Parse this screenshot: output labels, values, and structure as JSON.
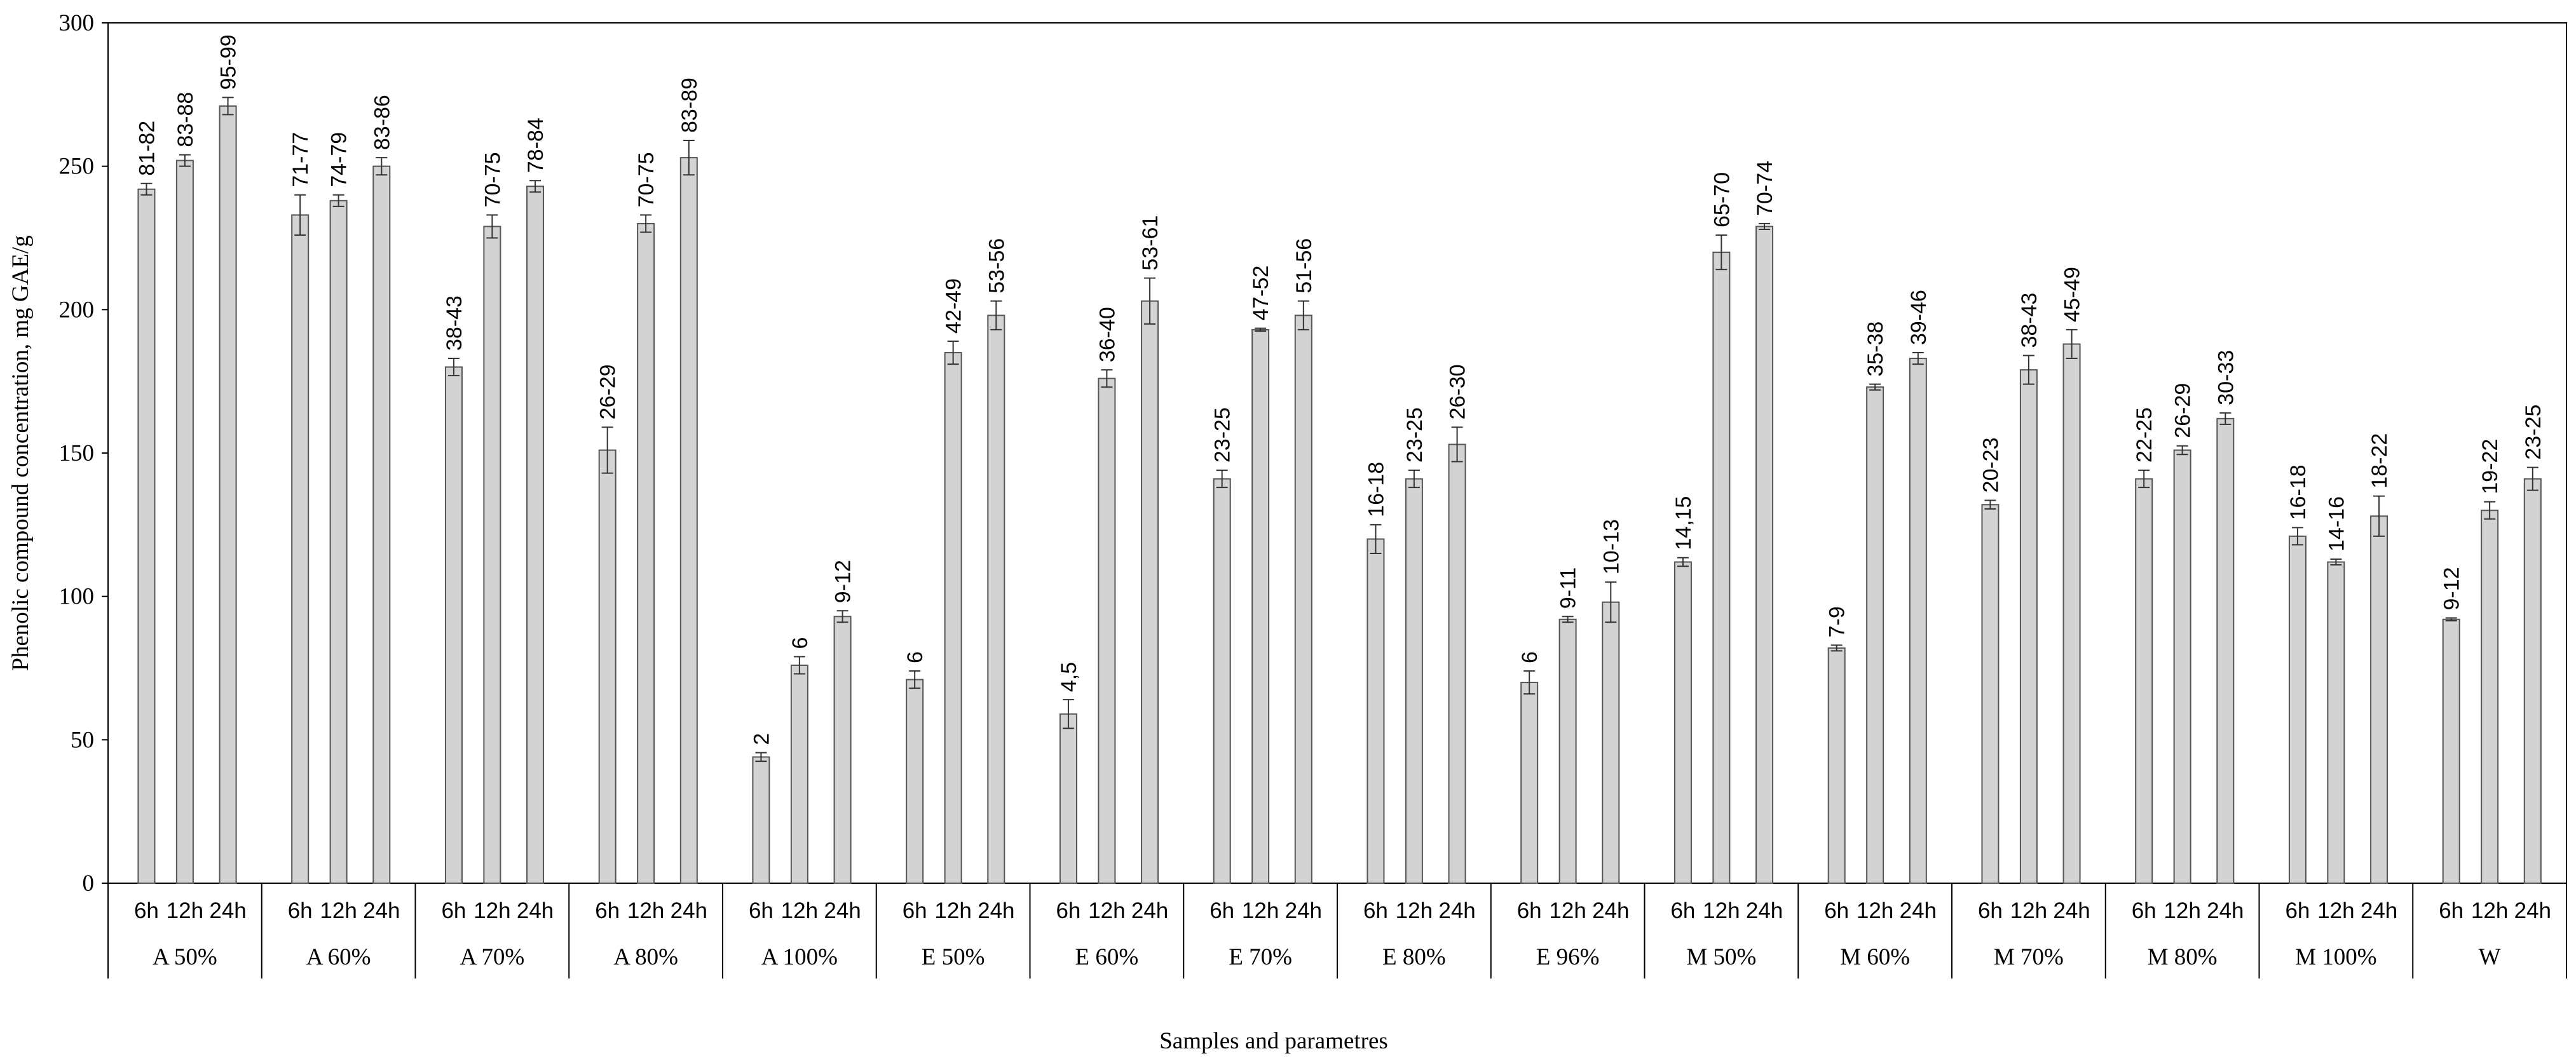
{
  "chart_data": {
    "type": "bar",
    "xlabel": "Samples and parametres",
    "ylabel": "Phenolic compound concentration, mg GAE/g",
    "ylim": [
      0,
      300
    ],
    "yticks": [
      "0",
      "50",
      "100",
      "150",
      "200",
      "250",
      "300"
    ],
    "bar_color": "#d3d3d3",
    "grid": false,
    "legend": "none",
    "groups": [
      {
        "name": "A 50%",
        "bars": [
          {
            "time": "6h",
            "value": 242,
            "error": 2,
            "label": "81-82"
          },
          {
            "time": "12h",
            "value": 252,
            "error": 2,
            "label": "83-88"
          },
          {
            "time": "24h",
            "value": 271,
            "error": 3,
            "label": "95-99"
          }
        ]
      },
      {
        "name": "A 60%",
        "bars": [
          {
            "time": "6h",
            "value": 233,
            "error": 7,
            "label": "71-77"
          },
          {
            "time": "12h",
            "value": 238,
            "error": 2,
            "label": "74-79"
          },
          {
            "time": "24h",
            "value": 250,
            "error": 3,
            "label": "83-86"
          }
        ]
      },
      {
        "name": "A 70%",
        "bars": [
          {
            "time": "6h",
            "value": 180,
            "error": 3,
            "label": "38-43"
          },
          {
            "time": "12h",
            "value": 229,
            "error": 4,
            "label": "70-75"
          },
          {
            "time": "24h",
            "value": 243,
            "error": 2,
            "label": "78-84"
          }
        ]
      },
      {
        "name": "A 80%",
        "bars": [
          {
            "time": "6h",
            "value": 151,
            "error": 8,
            "label": "26-29"
          },
          {
            "time": "12h",
            "value": 230,
            "error": 3,
            "label": "70-75"
          },
          {
            "time": "24h",
            "value": 253,
            "error": 6,
            "label": "83-89"
          }
        ]
      },
      {
        "name": "A 100%",
        "bars": [
          {
            "time": "6h",
            "value": 44,
            "error": 1.5,
            "label": "2"
          },
          {
            "time": "12h",
            "value": 76,
            "error": 3,
            "label": "6"
          },
          {
            "time": "24h",
            "value": 93,
            "error": 2,
            "label": "9-12"
          }
        ]
      },
      {
        "name": "E 50%",
        "bars": [
          {
            "time": "6h",
            "value": 71,
            "error": 3,
            "label": "6"
          },
          {
            "time": "12h",
            "value": 185,
            "error": 4,
            "label": "42-49"
          },
          {
            "time": "24h",
            "value": 198,
            "error": 5,
            "label": "53-56"
          }
        ]
      },
      {
        "name": "E 60%",
        "bars": [
          {
            "time": "6h",
            "value": 59,
            "error": 5,
            "label": "4,5"
          },
          {
            "time": "12h",
            "value": 176,
            "error": 3,
            "label": "36-40"
          },
          {
            "time": "24h",
            "value": 203,
            "error": 8,
            "label": "53-61"
          }
        ]
      },
      {
        "name": "E 70%",
        "bars": [
          {
            "time": "6h",
            "value": 141,
            "error": 3,
            "label": "23-25"
          },
          {
            "time": "12h",
            "value": 193,
            "error": 0.5,
            "label": "47-52"
          },
          {
            "time": "24h",
            "value": 198,
            "error": 5,
            "label": "51-56"
          }
        ]
      },
      {
        "name": "E 80%",
        "bars": [
          {
            "time": "6h",
            "value": 120,
            "error": 5,
            "label": "16-18"
          },
          {
            "time": "12h",
            "value": 141,
            "error": 3,
            "label": "23-25"
          },
          {
            "time": "24h",
            "value": 153,
            "error": 6,
            "label": "26-30"
          }
        ]
      },
      {
        "name": "E 96%",
        "bars": [
          {
            "time": "6h",
            "value": 70,
            "error": 4,
            "label": "6"
          },
          {
            "time": "12h",
            "value": 92,
            "error": 1,
            "label": "9-11"
          },
          {
            "time": "24h",
            "value": 98,
            "error": 7,
            "label": "10-13"
          }
        ]
      },
      {
        "name": "M 50%",
        "bars": [
          {
            "time": "6h",
            "value": 112,
            "error": 1.5,
            "label": "14,15"
          },
          {
            "time": "12h",
            "value": 220,
            "error": 6,
            "label": "65-70"
          },
          {
            "time": "24h",
            "value": 229,
            "error": 1,
            "label": "70-74"
          }
        ]
      },
      {
        "name": "M 60%",
        "bars": [
          {
            "time": "6h",
            "value": 82,
            "error": 1,
            "label": "7-9"
          },
          {
            "time": "12h",
            "value": 173,
            "error": 1,
            "label": "35-38"
          },
          {
            "time": "24h",
            "value": 183,
            "error": 2,
            "label": "39-46"
          }
        ]
      },
      {
        "name": "M 70%",
        "bars": [
          {
            "time": "6h",
            "value": 132,
            "error": 1.5,
            "label": "20-23"
          },
          {
            "time": "12h",
            "value": 179,
            "error": 5,
            "label": "38-43"
          },
          {
            "time": "24h",
            "value": 188,
            "error": 5,
            "label": "45-49"
          }
        ]
      },
      {
        "name": "M 80%",
        "bars": [
          {
            "time": "6h",
            "value": 141,
            "error": 3,
            "label": "22-25"
          },
          {
            "time": "12h",
            "value": 151,
            "error": 1.5,
            "label": "26-29"
          },
          {
            "time": "24h",
            "value": 162,
            "error": 2,
            "label": "30-33"
          }
        ]
      },
      {
        "name": "M 100%",
        "bars": [
          {
            "time": "6h",
            "value": 121,
            "error": 3,
            "label": "16-18"
          },
          {
            "time": "12h",
            "value": 112,
            "error": 1,
            "label": "14-16"
          },
          {
            "time": "24h",
            "value": 128,
            "error": 7,
            "label": "18-22"
          }
        ]
      },
      {
        "name": "W",
        "bars": [
          {
            "time": "6h",
            "value": 92,
            "error": 0.5,
            "label": "9-12"
          },
          {
            "time": "12h",
            "value": 130,
            "error": 3,
            "label": "19-22"
          },
          {
            "time": "24h",
            "value": 141,
            "error": 4,
            "label": "23-25"
          }
        ]
      }
    ]
  }
}
